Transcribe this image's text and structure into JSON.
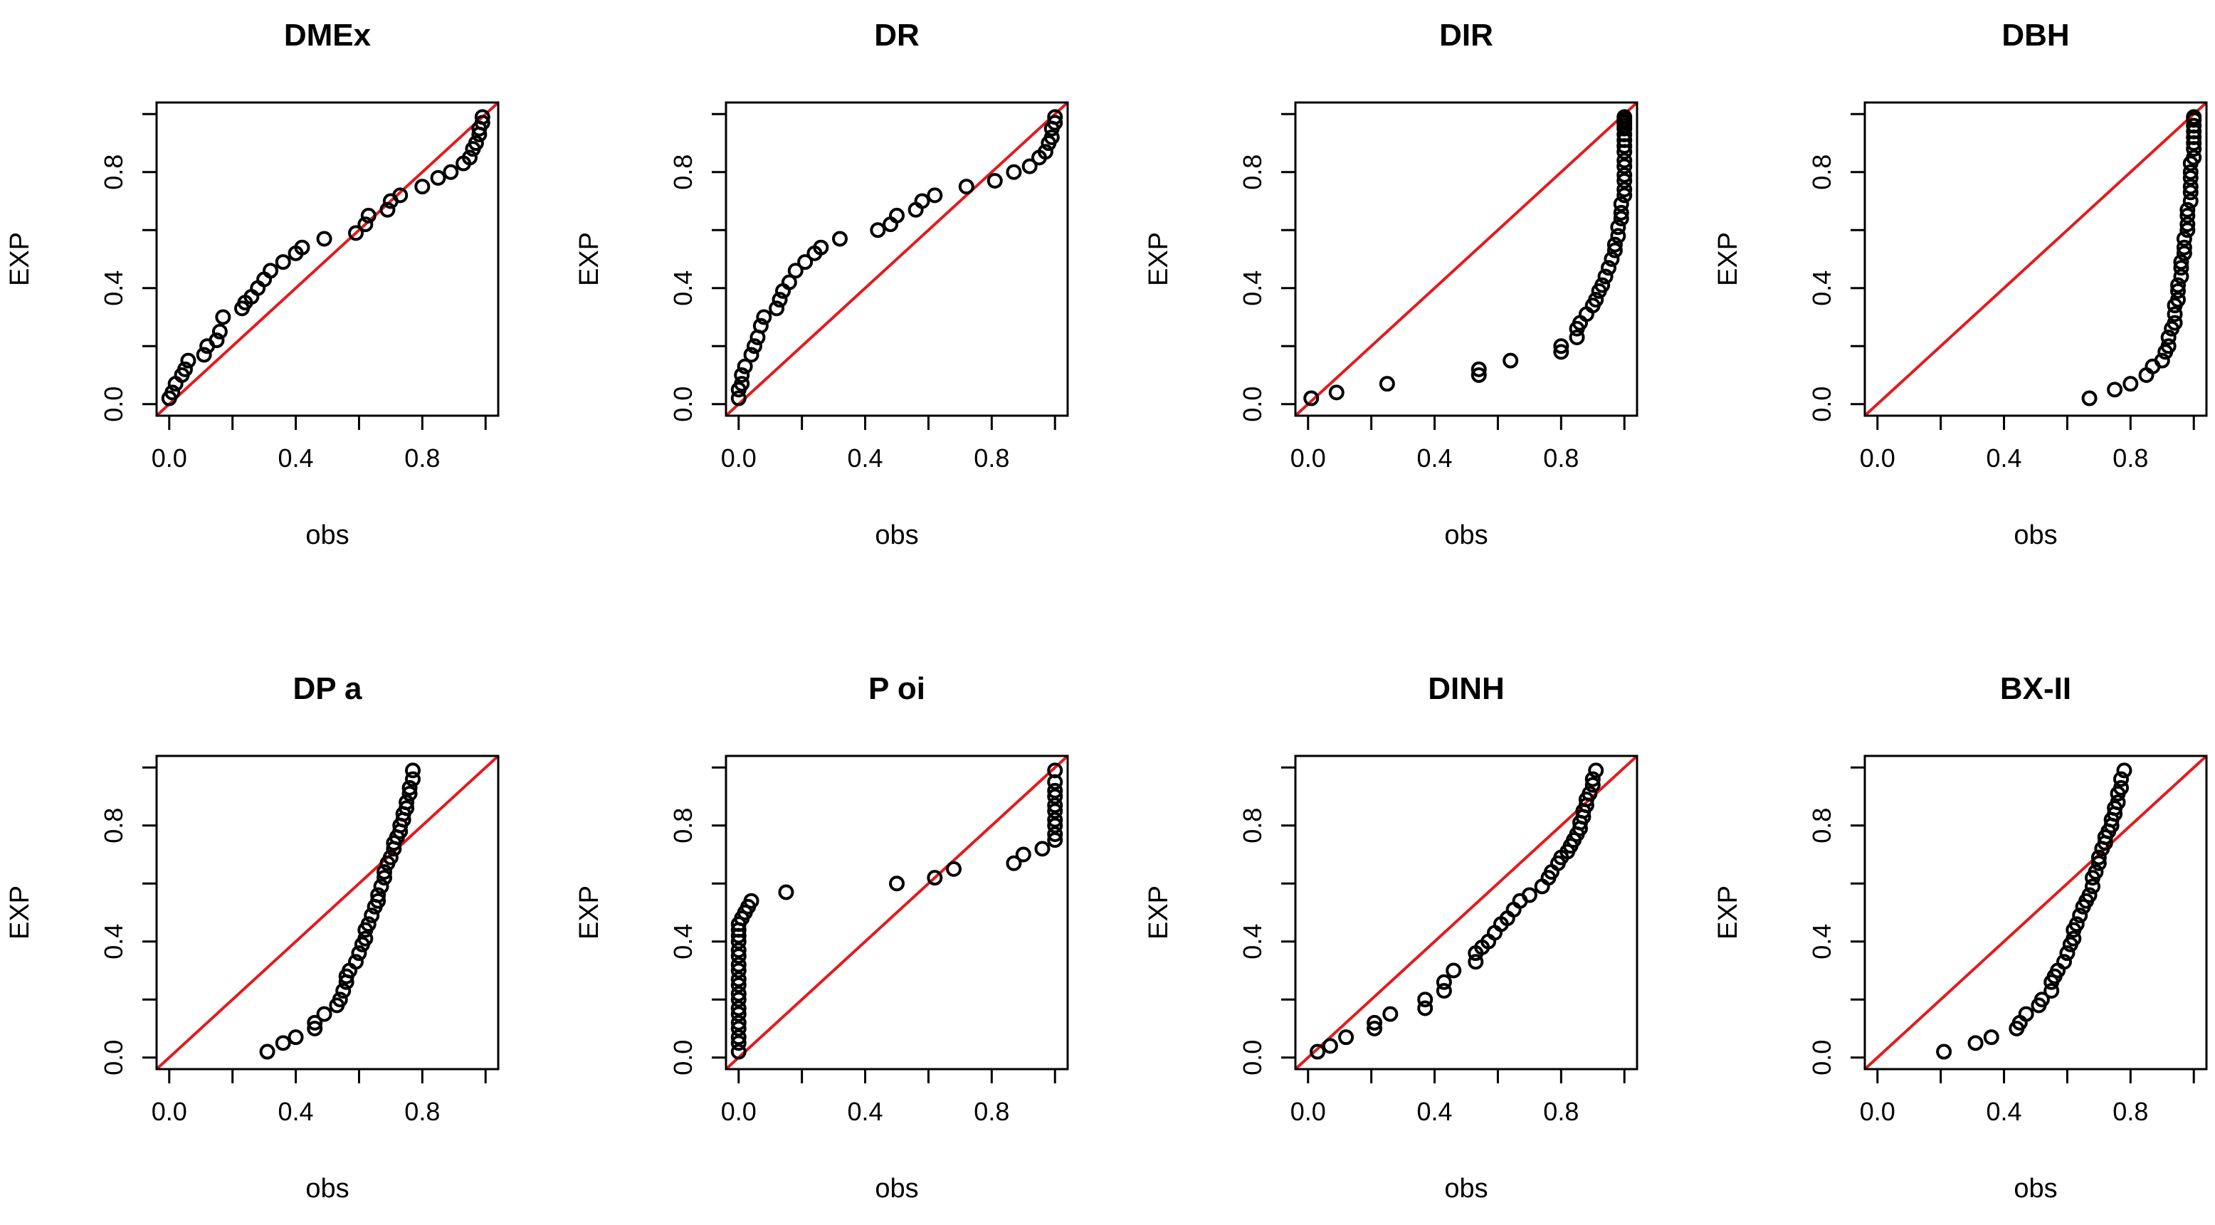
{
  "figure": {
    "xlabel": "obs",
    "ylabel": "EXP",
    "reference_line_color": "#e41a1c",
    "point_color": "#000000"
  },
  "chart_data": [
    {
      "type": "scatter",
      "title": "DMEx",
      "xlabel": "obs",
      "ylabel": "EXP",
      "xlim": [
        -0.04,
        1.04
      ],
      "ylim": [
        -0.04,
        1.04
      ],
      "xticks": [
        "0.0",
        "0.4",
        "0.8"
      ],
      "yticks": [
        "0.0",
        "0.4",
        "0.8"
      ],
      "reference_line": "y = x",
      "x": [
        0.0,
        0.01,
        0.02,
        0.04,
        0.05,
        0.06,
        0.11,
        0.12,
        0.15,
        0.16,
        0.17,
        0.23,
        0.24,
        0.26,
        0.28,
        0.3,
        0.32,
        0.36,
        0.4,
        0.42,
        0.49,
        0.59,
        0.62,
        0.63,
        0.69,
        0.7,
        0.73,
        0.8,
        0.85,
        0.89,
        0.93,
        0.95,
        0.96,
        0.97,
        0.98,
        0.98,
        0.99,
        0.99
      ],
      "y": [
        0.02,
        0.04,
        0.07,
        0.1,
        0.12,
        0.15,
        0.17,
        0.2,
        0.22,
        0.25,
        0.3,
        0.33,
        0.35,
        0.37,
        0.4,
        0.43,
        0.46,
        0.49,
        0.52,
        0.54,
        0.57,
        0.59,
        0.62,
        0.65,
        0.67,
        0.7,
        0.72,
        0.75,
        0.78,
        0.8,
        0.83,
        0.85,
        0.88,
        0.9,
        0.93,
        0.95,
        0.97,
        0.99
      ]
    },
    {
      "type": "scatter",
      "title": "DR",
      "xlabel": "obs",
      "ylabel": "EXP",
      "xlim": [
        -0.04,
        1.04
      ],
      "ylim": [
        -0.04,
        1.04
      ],
      "xticks": [
        "0.0",
        "0.4",
        "0.8"
      ],
      "yticks": [
        "0.0",
        "0.4",
        "0.8"
      ],
      "reference_line": "y = x",
      "x": [
        0.0,
        0.0,
        0.01,
        0.01,
        0.02,
        0.04,
        0.05,
        0.06,
        0.07,
        0.08,
        0.12,
        0.13,
        0.14,
        0.16,
        0.18,
        0.21,
        0.24,
        0.26,
        0.32,
        0.44,
        0.48,
        0.5,
        0.56,
        0.58,
        0.62,
        0.72,
        0.81,
        0.87,
        0.92,
        0.95,
        0.97,
        0.98,
        0.99,
        0.99,
        1.0,
        1.0
      ],
      "y": [
        0.02,
        0.05,
        0.07,
        0.1,
        0.13,
        0.17,
        0.2,
        0.23,
        0.27,
        0.3,
        0.33,
        0.36,
        0.39,
        0.42,
        0.46,
        0.49,
        0.52,
        0.54,
        0.57,
        0.6,
        0.62,
        0.65,
        0.67,
        0.7,
        0.72,
        0.75,
        0.77,
        0.8,
        0.82,
        0.85,
        0.87,
        0.9,
        0.92,
        0.95,
        0.97,
        0.99
      ]
    },
    {
      "type": "scatter",
      "title": "DIR",
      "xlabel": "obs",
      "ylabel": "EXP",
      "xlim": [
        -0.04,
        1.04
      ],
      "ylim": [
        -0.04,
        1.04
      ],
      "xticks": [
        "0.0",
        "0.4",
        "0.8"
      ],
      "yticks": [
        "0.0",
        "0.4",
        "0.8"
      ],
      "reference_line": "y = x",
      "x": [
        0.01,
        0.09,
        0.25,
        0.54,
        0.54,
        0.64,
        0.8,
        0.8,
        0.85,
        0.85,
        0.86,
        0.88,
        0.9,
        0.91,
        0.92,
        0.93,
        0.94,
        0.95,
        0.96,
        0.97,
        0.97,
        0.98,
        0.98,
        0.99,
        0.99,
        0.99,
        1.0,
        1.0,
        1.0,
        1.0,
        1.0,
        1.0,
        1.0,
        1.0,
        1.0,
        1.0,
        1.0,
        1.0,
        1.0,
        1.0,
        1.0
      ],
      "y": [
        0.02,
        0.04,
        0.07,
        0.1,
        0.12,
        0.15,
        0.18,
        0.2,
        0.23,
        0.26,
        0.28,
        0.31,
        0.34,
        0.36,
        0.39,
        0.41,
        0.44,
        0.47,
        0.5,
        0.53,
        0.55,
        0.58,
        0.61,
        0.64,
        0.66,
        0.69,
        0.72,
        0.74,
        0.77,
        0.79,
        0.82,
        0.84,
        0.87,
        0.89,
        0.91,
        0.93,
        0.95,
        0.96,
        0.97,
        0.98,
        0.99
      ]
    },
    {
      "type": "scatter",
      "title": "DBH",
      "xlabel": "obs",
      "ylabel": "EXP",
      "xlim": [
        -0.04,
        1.04
      ],
      "ylim": [
        -0.04,
        1.04
      ],
      "xticks": [
        "0.0",
        "0.4",
        "0.8"
      ],
      "yticks": [
        "0.0",
        "0.4",
        "0.8"
      ],
      "reference_line": "y = x",
      "x": [
        0.67,
        0.75,
        0.8,
        0.85,
        0.87,
        0.9,
        0.91,
        0.92,
        0.92,
        0.93,
        0.94,
        0.94,
        0.94,
        0.95,
        0.95,
        0.95,
        0.96,
        0.96,
        0.96,
        0.97,
        0.97,
        0.97,
        0.98,
        0.98,
        0.98,
        0.98,
        0.99,
        0.99,
        0.99,
        0.99,
        0.99,
        0.99,
        1.0,
        1.0,
        1.0,
        1.0,
        1.0,
        1.0,
        1.0,
        1.0
      ],
      "y": [
        0.02,
        0.05,
        0.07,
        0.1,
        0.13,
        0.15,
        0.18,
        0.2,
        0.23,
        0.26,
        0.28,
        0.31,
        0.34,
        0.36,
        0.39,
        0.41,
        0.44,
        0.47,
        0.49,
        0.52,
        0.54,
        0.57,
        0.6,
        0.62,
        0.65,
        0.67,
        0.7,
        0.73,
        0.75,
        0.78,
        0.8,
        0.83,
        0.85,
        0.88,
        0.9,
        0.92,
        0.94,
        0.96,
        0.98,
        0.99
      ]
    },
    {
      "type": "scatter",
      "title": "DP  a",
      "xlabel": "obs",
      "ylabel": "EXP",
      "xlim": [
        -0.04,
        1.04
      ],
      "ylim": [
        -0.04,
        1.04
      ],
      "xticks": [
        "0.0",
        "0.4",
        "0.8"
      ],
      "yticks": [
        "0.0",
        "0.4",
        "0.8"
      ],
      "reference_line": "y = x",
      "x": [
        0.31,
        0.36,
        0.4,
        0.46,
        0.46,
        0.49,
        0.53,
        0.54,
        0.55,
        0.56,
        0.56,
        0.57,
        0.59,
        0.6,
        0.61,
        0.62,
        0.62,
        0.63,
        0.64,
        0.65,
        0.66,
        0.66,
        0.67,
        0.68,
        0.68,
        0.69,
        0.7,
        0.71,
        0.71,
        0.72,
        0.73,
        0.73,
        0.74,
        0.74,
        0.75,
        0.75,
        0.76,
        0.76,
        0.77,
        0.77
      ],
      "y": [
        0.02,
        0.05,
        0.07,
        0.1,
        0.12,
        0.15,
        0.18,
        0.2,
        0.23,
        0.26,
        0.28,
        0.3,
        0.33,
        0.36,
        0.39,
        0.41,
        0.44,
        0.46,
        0.49,
        0.52,
        0.54,
        0.56,
        0.59,
        0.62,
        0.64,
        0.67,
        0.69,
        0.72,
        0.74,
        0.76,
        0.78,
        0.8,
        0.82,
        0.84,
        0.86,
        0.88,
        0.91,
        0.93,
        0.96,
        0.99
      ]
    },
    {
      "type": "scatter",
      "title": "P oi",
      "xlabel": "obs",
      "ylabel": "EXP",
      "xlim": [
        -0.04,
        1.04
      ],
      "ylim": [
        -0.04,
        1.04
      ],
      "xticks": [
        "0.0",
        "0.4",
        "0.8"
      ],
      "yticks": [
        "0.0",
        "0.4",
        "0.8"
      ],
      "reference_line": "y = x",
      "x": [
        0.0,
        0.0,
        0.0,
        0.0,
        0.0,
        0.0,
        0.0,
        0.0,
        0.0,
        0.0,
        0.0,
        0.0,
        0.0,
        0.0,
        0.0,
        0.0,
        0.0,
        0.0,
        0.0,
        0.01,
        0.02,
        0.03,
        0.04,
        0.15,
        0.5,
        0.62,
        0.68,
        0.87,
        0.9,
        0.96,
        1.0,
        1.0,
        1.0,
        1.0,
        1.0,
        1.0,
        1.0,
        1.0,
        1.0,
        1.0
      ],
      "y": [
        0.02,
        0.05,
        0.07,
        0.1,
        0.12,
        0.15,
        0.17,
        0.2,
        0.22,
        0.25,
        0.27,
        0.3,
        0.32,
        0.35,
        0.37,
        0.4,
        0.42,
        0.44,
        0.46,
        0.48,
        0.5,
        0.52,
        0.54,
        0.57,
        0.6,
        0.62,
        0.65,
        0.67,
        0.7,
        0.72,
        0.75,
        0.77,
        0.8,
        0.82,
        0.85,
        0.87,
        0.9,
        0.92,
        0.95,
        0.99
      ]
    },
    {
      "type": "scatter",
      "title": "DINH",
      "xlabel": "obs",
      "ylabel": "EXP",
      "xlim": [
        -0.04,
        1.04
      ],
      "ylim": [
        -0.04,
        1.04
      ],
      "xticks": [
        "0.0",
        "0.4",
        "0.8"
      ],
      "yticks": [
        "0.0",
        "0.4",
        "0.8"
      ],
      "reference_line": "y = x",
      "x": [
        0.03,
        0.07,
        0.12,
        0.21,
        0.21,
        0.26,
        0.37,
        0.37,
        0.43,
        0.43,
        0.46,
        0.53,
        0.53,
        0.55,
        0.57,
        0.59,
        0.61,
        0.63,
        0.65,
        0.67,
        0.7,
        0.74,
        0.76,
        0.77,
        0.79,
        0.8,
        0.82,
        0.83,
        0.84,
        0.85,
        0.86,
        0.86,
        0.87,
        0.87,
        0.88,
        0.88,
        0.89,
        0.9,
        0.9,
        0.91
      ],
      "y": [
        0.02,
        0.04,
        0.07,
        0.1,
        0.12,
        0.15,
        0.17,
        0.2,
        0.23,
        0.26,
        0.3,
        0.33,
        0.36,
        0.38,
        0.4,
        0.43,
        0.46,
        0.48,
        0.51,
        0.54,
        0.56,
        0.59,
        0.62,
        0.64,
        0.67,
        0.69,
        0.71,
        0.73,
        0.75,
        0.77,
        0.79,
        0.81,
        0.83,
        0.85,
        0.87,
        0.89,
        0.91,
        0.94,
        0.96,
        0.99
      ]
    },
    {
      "type": "scatter",
      "title": "BX-II",
      "xlabel": "obs",
      "ylabel": "EXP",
      "xlim": [
        -0.04,
        1.04
      ],
      "ylim": [
        -0.04,
        1.04
      ],
      "xticks": [
        "0.0",
        "0.4",
        "0.8"
      ],
      "yticks": [
        "0.0",
        "0.4",
        "0.8"
      ],
      "reference_line": "y = x",
      "x": [
        0.21,
        0.31,
        0.36,
        0.44,
        0.45,
        0.47,
        0.51,
        0.52,
        0.55,
        0.55,
        0.56,
        0.57,
        0.59,
        0.6,
        0.61,
        0.62,
        0.62,
        0.63,
        0.64,
        0.65,
        0.66,
        0.67,
        0.68,
        0.68,
        0.69,
        0.7,
        0.7,
        0.71,
        0.72,
        0.72,
        0.73,
        0.74,
        0.74,
        0.75,
        0.75,
        0.76,
        0.76,
        0.77,
        0.77,
        0.78
      ],
      "y": [
        0.02,
        0.05,
        0.07,
        0.1,
        0.12,
        0.15,
        0.18,
        0.2,
        0.23,
        0.26,
        0.28,
        0.3,
        0.33,
        0.36,
        0.39,
        0.41,
        0.44,
        0.46,
        0.49,
        0.52,
        0.54,
        0.56,
        0.59,
        0.62,
        0.64,
        0.67,
        0.69,
        0.72,
        0.74,
        0.76,
        0.78,
        0.8,
        0.82,
        0.84,
        0.86,
        0.88,
        0.91,
        0.93,
        0.96,
        0.99
      ]
    }
  ]
}
